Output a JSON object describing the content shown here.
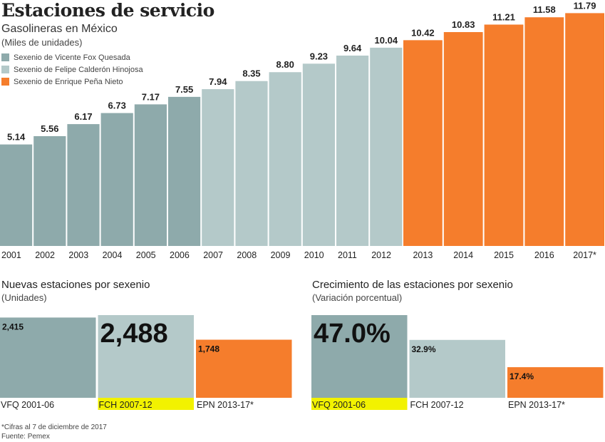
{
  "title": "Estaciones de servicio",
  "colors": {
    "vfq": "#8eaaab",
    "fch": "#b4c9c9",
    "epn": "#f57d2c",
    "highlight": "#f2f200"
  },
  "chart_data": [
    {
      "type": "bar",
      "title": "Gasolineras en México",
      "ylabel": "(Miles de unidades)",
      "categories": [
        "2001",
        "2002",
        "2003",
        "2004",
        "2005",
        "2006",
        "2007",
        "2008",
        "2009",
        "2010",
        "2011",
        "2012",
        "2013",
        "2014",
        "2015",
        "2016",
        "2017*"
      ],
      "values": [
        5.14,
        5.56,
        6.17,
        6.73,
        7.17,
        7.55,
        7.94,
        8.35,
        8.8,
        9.23,
        9.64,
        10.04,
        10.42,
        10.83,
        11.21,
        11.58,
        11.79
      ],
      "value_labels": [
        "5.14",
        "5.56",
        "6.17",
        "6.73",
        "7.17",
        "7.55",
        "7.94",
        "8.35",
        "8.80",
        "9.23",
        "9.64",
        "10.04",
        "10.42",
        "10.83",
        "11.21",
        "11.58",
        "11.79"
      ],
      "groups": [
        "vfq",
        "vfq",
        "vfq",
        "vfq",
        "vfq",
        "vfq",
        "fch",
        "fch",
        "fch",
        "fch",
        "fch",
        "fch",
        "epn",
        "epn",
        "epn",
        "epn",
        "epn"
      ],
      "legend": [
        {
          "key": "vfq",
          "label": "Sexenio de Vicente Fox Quesada"
        },
        {
          "key": "fch",
          "label": "Sexenio de Felipe Calderón Hinojosa"
        },
        {
          "key": "epn",
          "label": "Sexenio de Enrique Peña Nieto"
        }
      ],
      "legend_placement": "top-left",
      "ylim": [
        0,
        12
      ],
      "grid": false
    },
    {
      "type": "bar",
      "title": "Nuevas estaciones por sexenio",
      "ylabel": "(Unidades)",
      "categories": [
        "VFQ 2001-06",
        "FCH 2007-12",
        "EPN 2013-17*"
      ],
      "values": [
        2415,
        2488,
        1748
      ],
      "value_labels": [
        "2,415",
        "2,488",
        "1,748"
      ],
      "groups": [
        "vfq",
        "fch",
        "epn"
      ],
      "highlighted": "FCH 2007-12"
    },
    {
      "type": "bar",
      "title": "Crecimiento de las estaciones por sexenio",
      "ylabel": "(Variación porcentual)",
      "categories": [
        "VFQ 2001-06",
        "FCH 2007-12",
        "EPN 2013-17*"
      ],
      "values": [
        47.0,
        32.9,
        17.4
      ],
      "value_labels": [
        "47.0%",
        "32.9%",
        "17.4%"
      ],
      "groups": [
        "vfq",
        "fch",
        "epn"
      ],
      "highlighted": "VFQ 2001-06"
    }
  ],
  "notes": {
    "asterisk": "*Cifras al 7 de diciembre de 2017",
    "source": "Fuente: Pemex"
  }
}
